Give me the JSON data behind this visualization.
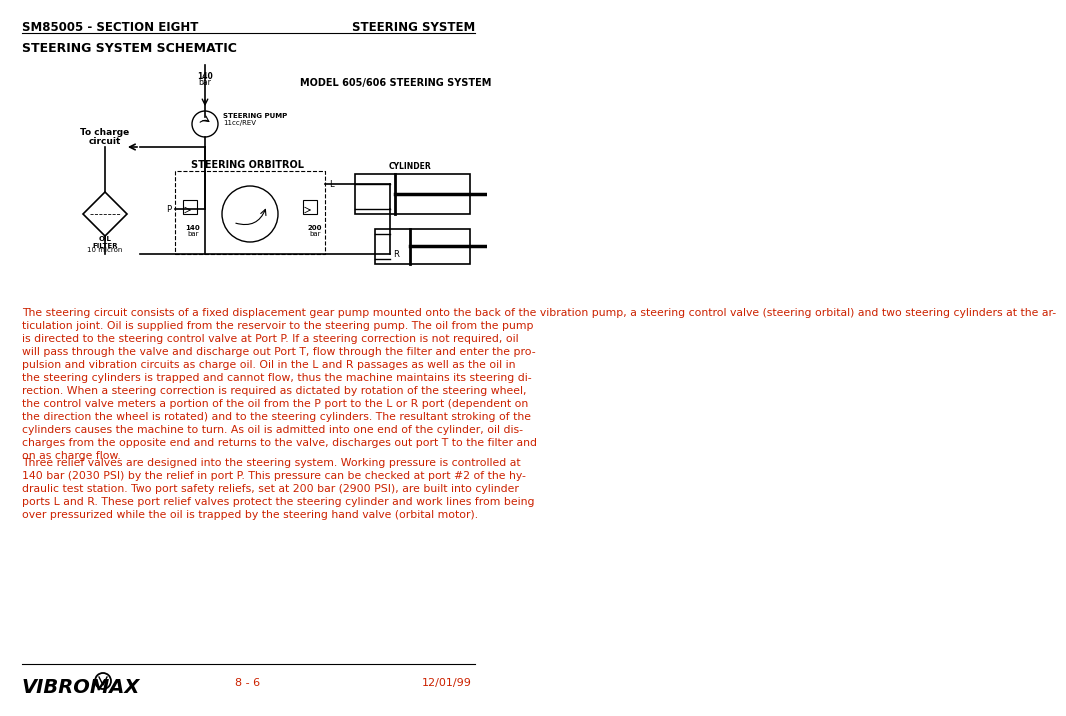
{
  "header_left": "SM85005 - SECTION EIGHT",
  "header_right": "STEERING SYSTEM",
  "section_title": "STEERING SYSTEM SCHEMATIC",
  "diagram_label": "MODEL 605/606 STEERING SYSTEM",
  "paragraph1": "The steering circuit consists of a fixed displacement gear pump mounted onto the back of the vibration pump, a steering control valve (steering orbital) and two steering cylinders at the ar-ticulation joint. Oil is supplied from the reservoir to the steering pump. The oil from the pump is directed to the steering control valve at Port P. If a steering correction is not required, oil will pass through the valve and discharge out Port T, flow through the filter and enter the pro-pulsion and vibration circuits as charge oil. Oil in the L and R passages as well as the oil in the steering cylinders is trapped and cannot flow, thus the machine maintains its steering di-rection. When a steering correction is required as dictated by rotation of the steering wheel, the control valve meters a portion of the oil from the P port to the L or R port (dependent on the direction the wheel is rotated) and to the steering cylinders. The resultant stroking of the cylinders causes the machine to turn. As oil is admitted into one end of the cylinder, oil dis-charges from the opposite end and returns to the valve, discharges out port T to the filter and on as charge flow.",
  "paragraph2": "Three relief valves are designed into the steering system. Working pressure is controlled at 140 bar (2030 PSI) by the relief in port P. This pressure can be checked at port #2 of the hy-draulic test station. Two port safety reliefs, set at 200 bar (2900 PSI), are built into cylinder ports L and R. These port relief valves protect the steering cylinder and work lines from being over pressurized while the oil is trapped by the steering hand valve (orbital motor).",
  "footer_page": "8 - 6",
  "footer_date": "12/01/99",
  "bg_color": "#ffffff",
  "text_color": "#1a1a1a",
  "red_text_color": "#cc2200"
}
